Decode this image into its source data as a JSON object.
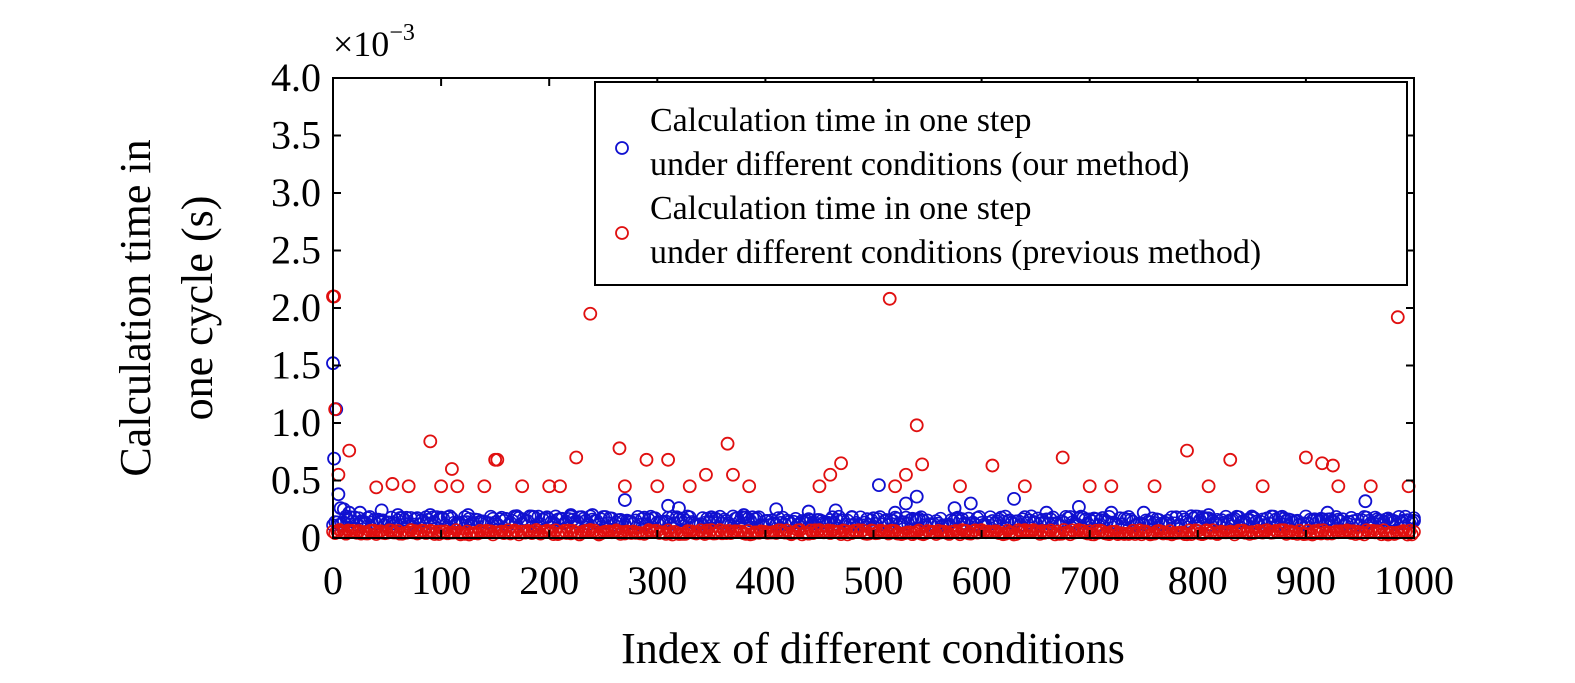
{
  "chart_data": {
    "type": "scatter",
    "title": "",
    "xlabel": "Index of different conditions",
    "ylabel_lines": [
      "Calculation time in",
      "one cycle (s)"
    ],
    "y_multiplier": {
      "base": "×10",
      "exponent": "−3"
    },
    "xlim": [
      0,
      1000
    ],
    "ylim": [
      0,
      4.0
    ],
    "x_ticks": [
      0,
      100,
      200,
      300,
      400,
      500,
      600,
      700,
      800,
      900,
      1000
    ],
    "y_ticks": [
      0,
      0.5,
      1.0,
      1.5,
      2.0,
      2.5,
      3.0,
      3.5,
      4.0
    ],
    "y_tick_labels": [
      "0",
      "0.5",
      "1.0",
      "1.5",
      "2.0",
      "2.5",
      "3.0",
      "3.5",
      "4.0"
    ],
    "grid": false,
    "legend_position": "top-right",
    "series": [
      {
        "name_lines": [
          "Calculation time in one step",
          "under different conditions (our method)"
        ],
        "color": "#1010d0",
        "marker": "open-circle",
        "baseline": 0.15,
        "baseline_spread": 0.04,
        "points": [
          [
            0,
            1.52
          ],
          [
            1,
            0.69
          ],
          [
            3,
            1.12
          ],
          [
            5,
            0.38
          ],
          [
            7,
            0.26
          ],
          [
            10,
            0.25
          ],
          [
            15,
            0.22
          ],
          [
            25,
            0.22
          ],
          [
            45,
            0.24
          ],
          [
            60,
            0.2
          ],
          [
            90,
            0.2
          ],
          [
            125,
            0.2
          ],
          [
            170,
            0.19
          ],
          [
            220,
            0.2
          ],
          [
            240,
            0.2
          ],
          [
            270,
            0.33
          ],
          [
            310,
            0.28
          ],
          [
            320,
            0.26
          ],
          [
            350,
            0.18
          ],
          [
            380,
            0.2
          ],
          [
            410,
            0.25
          ],
          [
            440,
            0.23
          ],
          [
            465,
            0.24
          ],
          [
            480,
            0.18
          ],
          [
            505,
            0.46
          ],
          [
            520,
            0.22
          ],
          [
            530,
            0.3
          ],
          [
            540,
            0.36
          ],
          [
            575,
            0.26
          ],
          [
            590,
            0.3
          ],
          [
            630,
            0.34
          ],
          [
            660,
            0.22
          ],
          [
            690,
            0.27
          ],
          [
            720,
            0.22
          ],
          [
            750,
            0.22
          ],
          [
            780,
            0.18
          ],
          [
            810,
            0.2
          ],
          [
            850,
            0.18
          ],
          [
            880,
            0.17
          ],
          [
            920,
            0.22
          ],
          [
            955,
            0.32
          ],
          [
            990,
            0.15
          ],
          [
            1000,
            0.15
          ]
        ]
      },
      {
        "name_lines": [
          "Calculation time in one step",
          "under different conditions (previous method)"
        ],
        "color": "#e01010",
        "marker": "open-circle",
        "baseline": 0.05,
        "baseline_spread": 0.02,
        "points": [
          [
            0,
            2.1
          ],
          [
            1,
            2.1
          ],
          [
            2,
            1.12
          ],
          [
            5,
            0.55
          ],
          [
            15,
            0.76
          ],
          [
            40,
            0.44
          ],
          [
            55,
            0.47
          ],
          [
            70,
            0.45
          ],
          [
            90,
            0.84
          ],
          [
            100,
            0.45
          ],
          [
            110,
            0.6
          ],
          [
            115,
            0.45
          ],
          [
            140,
            0.45
          ],
          [
            150,
            0.68
          ],
          [
            152,
            0.68
          ],
          [
            175,
            0.45
          ],
          [
            200,
            0.45
          ],
          [
            210,
            0.45
          ],
          [
            225,
            0.7
          ],
          [
            238,
            1.95
          ],
          [
            265,
            0.78
          ],
          [
            270,
            0.45
          ],
          [
            290,
            0.68
          ],
          [
            300,
            0.45
          ],
          [
            310,
            0.68
          ],
          [
            330,
            0.45
          ],
          [
            345,
            0.55
          ],
          [
            365,
            0.82
          ],
          [
            370,
            0.55
          ],
          [
            385,
            0.45
          ],
          [
            450,
            0.45
          ],
          [
            460,
            0.55
          ],
          [
            470,
            0.65
          ],
          [
            515,
            2.08
          ],
          [
            520,
            0.45
          ],
          [
            530,
            0.55
          ],
          [
            540,
            0.98
          ],
          [
            545,
            0.64
          ],
          [
            580,
            0.45
          ],
          [
            610,
            0.63
          ],
          [
            640,
            0.45
          ],
          [
            675,
            0.7
          ],
          [
            700,
            0.45
          ],
          [
            720,
            0.45
          ],
          [
            760,
            0.45
          ],
          [
            790,
            0.76
          ],
          [
            810,
            0.45
          ],
          [
            830,
            0.68
          ],
          [
            860,
            0.45
          ],
          [
            900,
            0.7
          ],
          [
            915,
            0.65
          ],
          [
            925,
            0.63
          ],
          [
            930,
            0.45
          ],
          [
            960,
            0.45
          ],
          [
            985,
            1.92
          ],
          [
            995,
            0.45
          ]
        ]
      }
    ]
  }
}
